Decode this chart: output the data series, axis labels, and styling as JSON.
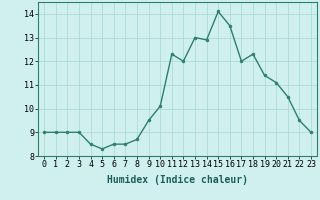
{
  "x": [
    0,
    1,
    2,
    3,
    4,
    5,
    6,
    7,
    8,
    9,
    10,
    11,
    12,
    13,
    14,
    15,
    16,
    17,
    18,
    19,
    20,
    21,
    22,
    23
  ],
  "y": [
    9,
    9,
    9,
    9,
    8.5,
    8.3,
    8.5,
    8.5,
    8.7,
    9.5,
    10.1,
    12.3,
    12.0,
    13.0,
    12.9,
    14.1,
    13.5,
    12.0,
    12.3,
    11.4,
    11.1,
    10.5,
    9.5,
    9.0
  ],
  "line_color": "#2e7f6e",
  "marker": "o",
  "marker_size": 2.0,
  "line_width": 1.0,
  "bg_color": "#cff0ee",
  "grid_color": "#a8d8d4",
  "xlabel": "Humidex (Indice chaleur)",
  "xlabel_fontsize": 7,
  "xlim": [
    -0.5,
    23.5
  ],
  "ylim": [
    8,
    14.5
  ],
  "yticks": [
    8,
    9,
    10,
    11,
    12,
    13,
    14
  ],
  "xticks": [
    0,
    1,
    2,
    3,
    4,
    5,
    6,
    7,
    8,
    9,
    10,
    11,
    12,
    13,
    14,
    15,
    16,
    17,
    18,
    19,
    20,
    21,
    22,
    23
  ],
  "tick_fontsize": 6,
  "fig_bg_color": "#cff0ee",
  "spine_color": "#2e7f6e"
}
